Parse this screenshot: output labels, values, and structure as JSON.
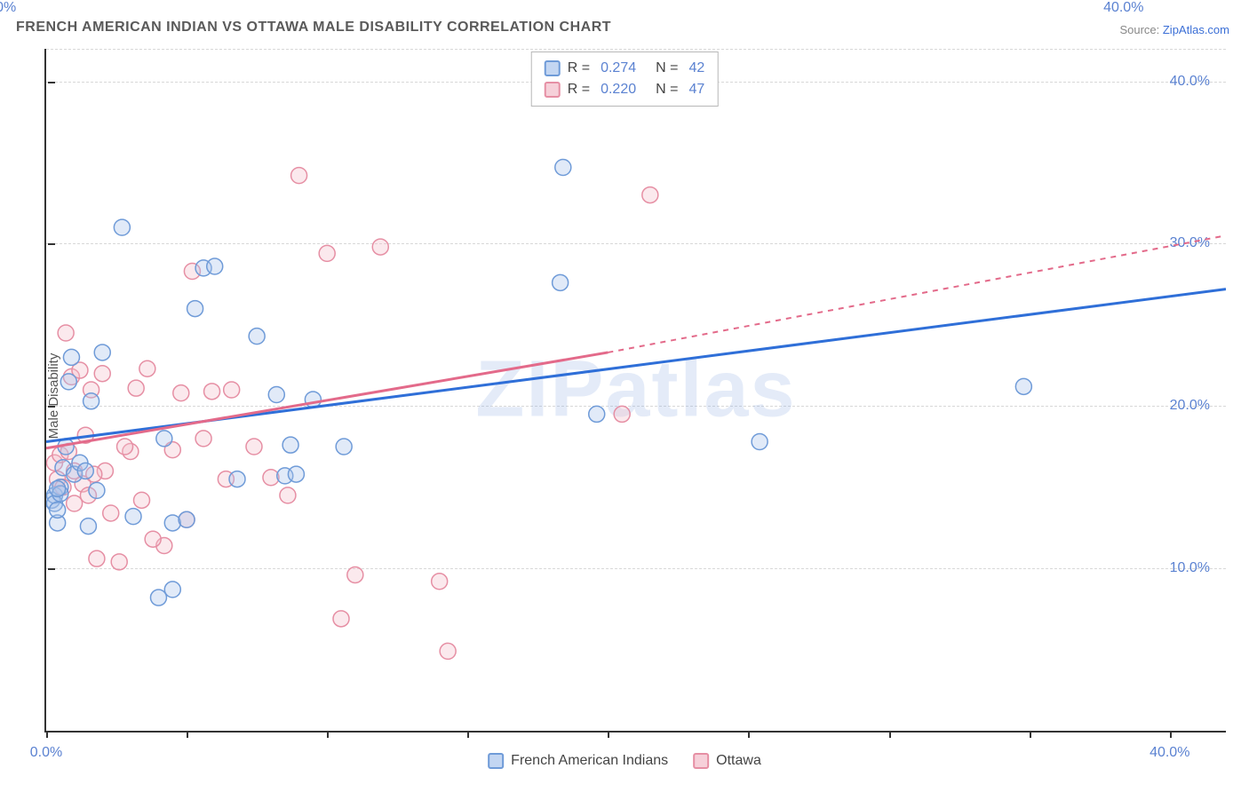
{
  "title": "FRENCH AMERICAN INDIAN VS OTTAWA MALE DISABILITY CORRELATION CHART",
  "source_prefix": "Source: ",
  "source_link": "ZipAtlas.com",
  "y_axis_label": "Male Disability",
  "watermark": "ZIPatlas",
  "chart": {
    "type": "scatter",
    "xlim": [
      0,
      42
    ],
    "ylim": [
      0,
      42
    ],
    "x_tick_positions": [
      0,
      5,
      10,
      15,
      20,
      25,
      30,
      35,
      40
    ],
    "y_tick_positions": [
      0,
      10,
      20,
      30,
      40
    ],
    "x_tick_labels": {
      "0": "0.0%",
      "40": "40.0%"
    },
    "y_tick_labels": {
      "10": "10.0%",
      "20": "20.0%",
      "30": "30.0%",
      "40": "40.0%"
    },
    "grid_color": "#d8d8d8",
    "background_color": "#ffffff",
    "axis_color": "#333333",
    "tick_label_color": "#5b82d1",
    "tick_label_fontsize": 16,
    "marker_radius": 9,
    "marker_stroke_width": 1.5,
    "marker_fill_opacity": 0.35,
    "trend_line_width_solid": 3,
    "trend_line_width_dashed": 2,
    "dash_pattern": "6,6"
  },
  "series": [
    {
      "name": "French American Indians",
      "color_fill": "#a8c3ec",
      "color_stroke": "#6f9bd8",
      "trend_color": "#2f6fd8",
      "legend_swatch_fill": "#c3d6f2",
      "legend_swatch_border": "#6f9bd8",
      "R": "0.274",
      "N": "42",
      "trend": {
        "x1": 0,
        "y1": 17.8,
        "x2": 42,
        "y2": 27.2
      },
      "points": [
        [
          0.2,
          14.2
        ],
        [
          0.3,
          14.5
        ],
        [
          0.4,
          12.8
        ],
        [
          0.5,
          15.0
        ],
        [
          0.6,
          16.2
        ],
        [
          0.7,
          17.5
        ],
        [
          0.8,
          21.5
        ],
        [
          0.9,
          23.0
        ],
        [
          1.0,
          15.8
        ],
        [
          1.2,
          16.5
        ],
        [
          1.4,
          16.0
        ],
        [
          1.6,
          20.3
        ],
        [
          1.8,
          14.8
        ],
        [
          2.0,
          23.3
        ],
        [
          2.7,
          31.0
        ],
        [
          3.1,
          13.2
        ],
        [
          4.0,
          8.2
        ],
        [
          4.2,
          18.0
        ],
        [
          4.5,
          12.8
        ],
        [
          5.0,
          13.0
        ],
        [
          5.3,
          26.0
        ],
        [
          5.6,
          28.5
        ],
        [
          6.0,
          28.6
        ],
        [
          6.8,
          15.5
        ],
        [
          7.5,
          24.3
        ],
        [
          8.2,
          20.7
        ],
        [
          8.5,
          15.7
        ],
        [
          8.7,
          17.6
        ],
        [
          8.9,
          15.8
        ],
        [
          9.5,
          20.4
        ],
        [
          10.6,
          17.5
        ],
        [
          18.3,
          27.6
        ],
        [
          18.4,
          34.7
        ],
        [
          19.6,
          19.5
        ],
        [
          25.4,
          17.8
        ],
        [
          34.8,
          21.2
        ],
        [
          0.3,
          14.0
        ],
        [
          0.4,
          13.6
        ],
        [
          0.5,
          14.6
        ],
        [
          1.5,
          12.6
        ],
        [
          4.5,
          8.7
        ],
        [
          0.4,
          14.9
        ]
      ]
    },
    {
      "name": "Ottawa",
      "color_fill": "#f3c1cb",
      "color_stroke": "#e68fa4",
      "trend_color": "#e36a8a",
      "legend_swatch_fill": "#f6d0d9",
      "legend_swatch_border": "#e68fa4",
      "R": "0.220",
      "N": "47",
      "trend_solid": {
        "x1": 0,
        "y1": 17.4,
        "x2": 20,
        "y2": 23.3
      },
      "trend_dashed": {
        "x1": 20,
        "y1": 23.3,
        "x2": 42,
        "y2": 30.5
      },
      "points": [
        [
          0.3,
          16.5
        ],
        [
          0.4,
          15.5
        ],
        [
          0.5,
          17.0
        ],
        [
          0.7,
          24.5
        ],
        [
          0.9,
          21.8
        ],
        [
          1.0,
          14.0
        ],
        [
          1.2,
          22.2
        ],
        [
          1.3,
          15.2
        ],
        [
          1.4,
          18.2
        ],
        [
          1.6,
          21.0
        ],
        [
          1.8,
          10.6
        ],
        [
          2.0,
          22.0
        ],
        [
          2.3,
          13.4
        ],
        [
          2.6,
          10.4
        ],
        [
          3.0,
          17.2
        ],
        [
          3.2,
          21.1
        ],
        [
          3.4,
          14.2
        ],
        [
          3.6,
          22.3
        ],
        [
          4.2,
          11.4
        ],
        [
          4.5,
          17.3
        ],
        [
          4.8,
          20.8
        ],
        [
          5.0,
          13.0
        ],
        [
          5.2,
          28.3
        ],
        [
          5.6,
          18.0
        ],
        [
          5.9,
          20.9
        ],
        [
          6.4,
          15.5
        ],
        [
          6.6,
          21.0
        ],
        [
          7.4,
          17.5
        ],
        [
          8.0,
          15.6
        ],
        [
          8.6,
          14.5
        ],
        [
          9.0,
          34.2
        ],
        [
          10.0,
          29.4
        ],
        [
          10.5,
          6.9
        ],
        [
          11.0,
          9.6
        ],
        [
          11.9,
          29.8
        ],
        [
          14.0,
          9.2
        ],
        [
          14.3,
          4.9
        ],
        [
          20.5,
          19.5
        ],
        [
          21.5,
          33.0
        ],
        [
          1.5,
          14.5
        ],
        [
          2.1,
          16.0
        ],
        [
          0.6,
          15.0
        ],
        [
          0.8,
          17.2
        ],
        [
          1.0,
          16.0
        ],
        [
          1.7,
          15.8
        ],
        [
          3.8,
          11.8
        ],
        [
          2.8,
          17.5
        ]
      ]
    }
  ],
  "legend_top": {
    "label_r": "R = ",
    "label_n": "N = "
  },
  "legend_bottom": {
    "items": [
      "French American Indians",
      "Ottawa"
    ]
  }
}
